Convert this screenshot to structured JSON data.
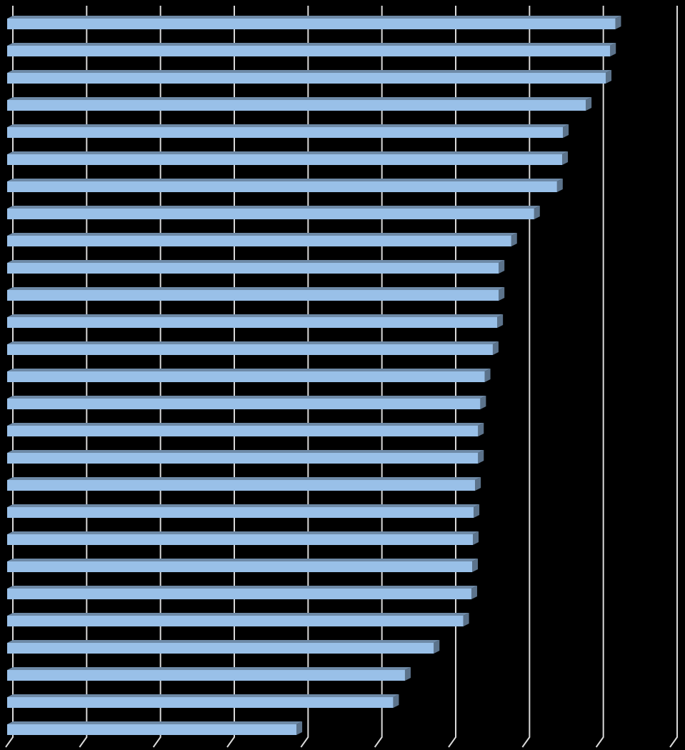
{
  "chart_data": {
    "type": "bar",
    "orientation": "horizontal",
    "categories": [
      null,
      null,
      null,
      null,
      null,
      null,
      null,
      null,
      null,
      null,
      null,
      null,
      null,
      null,
      null,
      null,
      null,
      null,
      null,
      null,
      null,
      null,
      null,
      null,
      null,
      null,
      null
    ],
    "values": [
      8.24,
      8.17,
      8.11,
      7.84,
      7.53,
      7.52,
      7.45,
      7.14,
      6.83,
      6.66,
      6.66,
      6.64,
      6.58,
      6.47,
      6.41,
      6.38,
      6.38,
      6.34,
      6.32,
      6.31,
      6.3,
      6.29,
      6.18,
      5.78,
      5.39,
      5.23,
      3.92
    ],
    "color": "#99c0e8",
    "xlim": [
      0,
      9
    ],
    "xticks": [
      0,
      1,
      2,
      3,
      4,
      5,
      6,
      7,
      8,
      9
    ],
    "grid": true
  }
}
